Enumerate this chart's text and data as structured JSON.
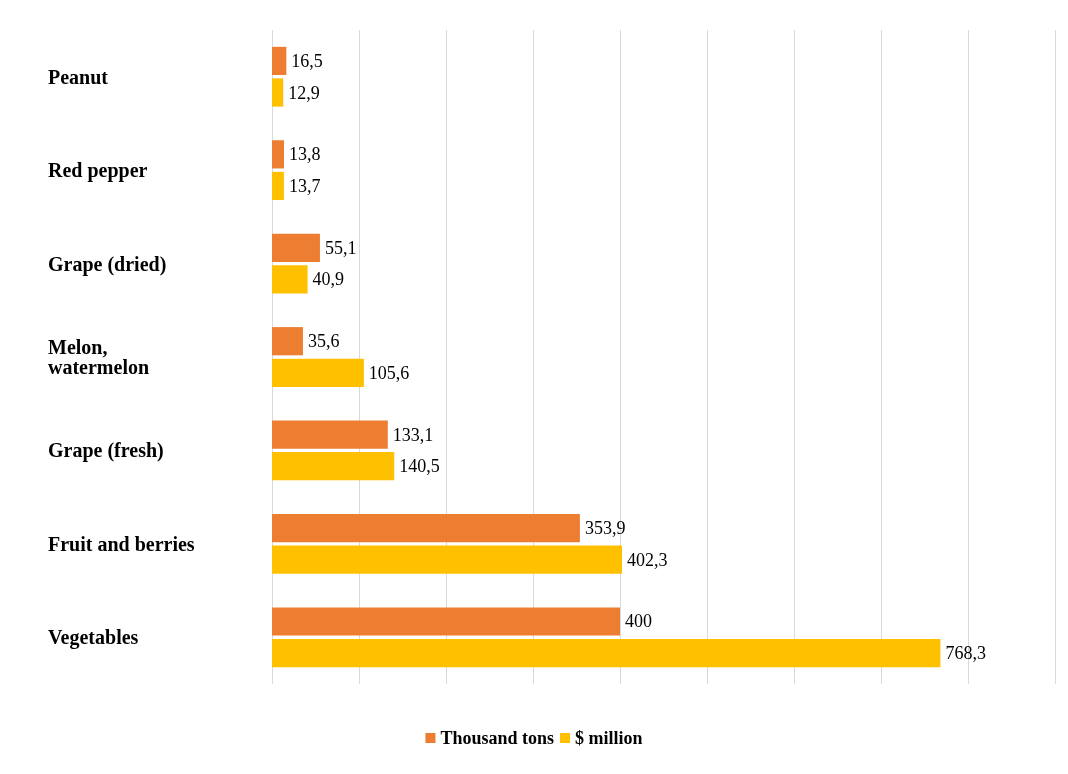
{
  "chart_data": {
    "type": "bar",
    "orientation": "horizontal",
    "categories": [
      "Peanut",
      "Red pepper",
      "Grape (dried)",
      "Melon, watermelon",
      "Grape (fresh)",
      "Fruit and berries",
      "Vegetables"
    ],
    "series": [
      {
        "name": "Thousand tons",
        "color": "#ed7d31",
        "values": [
          16.5,
          13.8,
          55.1,
          35.6,
          133.1,
          353.9,
          400
        ],
        "value_labels": [
          "16,5",
          "13,8",
          "55,1",
          "35,6",
          "133,1",
          "353,9",
          "400"
        ]
      },
      {
        "name": "$ million",
        "color": "#ffc000",
        "values": [
          12.9,
          13.7,
          40.9,
          105.6,
          140.5,
          402.3,
          768.3
        ],
        "value_labels": [
          "12,9",
          "13,7",
          "40,9",
          "105,6",
          "140,5",
          "402,3",
          "768,3"
        ]
      }
    ],
    "xlim": [
      0,
      900
    ],
    "xticks": [
      {
        "value": 0,
        "label": null
      },
      {
        "value": 100,
        "label": null
      },
      {
        "value": 200,
        "label": null
      },
      {
        "value": 300,
        "label": null
      },
      {
        "value": 400,
        "label": null
      },
      {
        "value": 500,
        "label": null
      },
      {
        "value": 600,
        "label": null
      },
      {
        "value": 700,
        "label": null
      },
      {
        "value": 800,
        "label": null
      },
      {
        "value": 900,
        "label": null
      }
    ],
    "grid": "x",
    "legend": "bottom"
  }
}
